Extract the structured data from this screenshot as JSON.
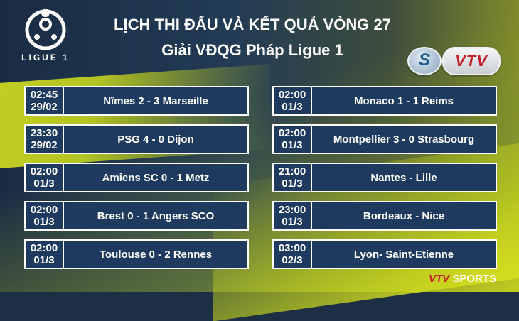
{
  "header": {
    "logo_text": "LIGUE 1",
    "title_line1": "LỊCH THI ĐẤU VÀ KẾT QUẢ VÒNG 27",
    "title_line2": "Giải VĐQG Pháp Ligue 1",
    "badge_s": "S",
    "badge_vtv": "VTV"
  },
  "left_matches": [
    {
      "time": "02:45",
      "date": "29/02",
      "match": "Nîmes 2 - 3 Marseille"
    },
    {
      "time": "23:30",
      "date": "29/02",
      "match": "PSG 4 - 0 Dijon"
    },
    {
      "time": "02:00",
      "date": "01/3",
      "match": "Amiens SC 0 - 1 Metz"
    },
    {
      "time": "02:00",
      "date": "01/3",
      "match": "Brest 0 - 1 Angers SCO"
    },
    {
      "time": "02:00",
      "date": "01/3",
      "match": "Toulouse 0 - 2 Rennes"
    }
  ],
  "right_matches": [
    {
      "time": "02:00",
      "date": "01/3",
      "match": "Monaco 1 - 1 Reims"
    },
    {
      "time": "02:00",
      "date": "01/3",
      "match": "Montpellier 3 - 0 Strasbourg"
    },
    {
      "time": "21:00",
      "date": "01/3",
      "match": "Nantes - Lille"
    },
    {
      "time": "23:00",
      "date": "01/3",
      "match": "Bordeaux - Nice"
    },
    {
      "time": "03:00",
      "date": "02/3",
      "match": "Lyon- Saint-Etienne"
    }
  ],
  "footer": {
    "brand_vtv": "VTV",
    "brand_sports": "SPORTS"
  },
  "colors": {
    "panel": "#1e3a5e",
    "accent_yellow": "#d6df1f",
    "vtv_red": "#c4202a"
  },
  "icons": {
    "league_logo": "ligue1-logo-icon"
  }
}
